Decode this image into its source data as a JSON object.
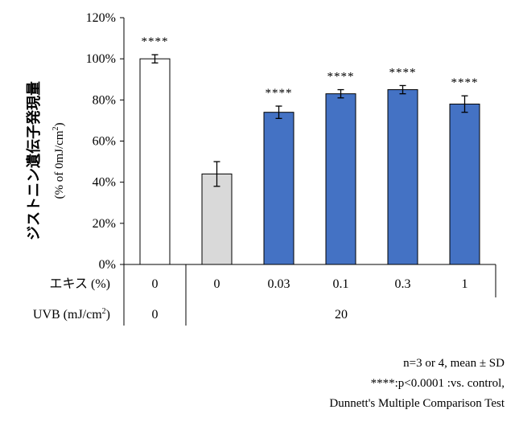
{
  "chart_data": {
    "type": "bar",
    "ylabel_main": "ジストニン遺伝子発現量",
    "ylabel_unit_prefix": "(% of 0mJ/cm",
    "ylabel_unit_sup": "2",
    "ylabel_unit_suffix": ")",
    "ylim": [
      0,
      120
    ],
    "yticks": [
      "0%",
      "20%",
      "40%",
      "60%",
      "80%",
      "100%",
      "120%"
    ],
    "bars": [
      {
        "extract": "0",
        "uvb": "0",
        "value": 100,
        "sd": 2,
        "sig": "****",
        "color": "#ffffff"
      },
      {
        "extract": "0",
        "uvb": "20",
        "value": 44,
        "sd": 6,
        "sig": "",
        "color": "#d9d9d9"
      },
      {
        "extract": "0.03",
        "uvb": "20",
        "value": 74,
        "sd": 3,
        "sig": "****",
        "color": "#4472c4"
      },
      {
        "extract": "0.1",
        "uvb": "20",
        "value": 83,
        "sd": 2,
        "sig": "****",
        "color": "#4472c4"
      },
      {
        "extract": "0.3",
        "uvb": "20",
        "value": 85,
        "sd": 2,
        "sig": "****",
        "color": "#4472c4"
      },
      {
        "extract": "1",
        "uvb": "20",
        "value": 78,
        "sd": 4,
        "sig": "****",
        "color": "#4472c4"
      }
    ],
    "row1_label": "エキス (%)",
    "row2_label_prefix": "UVB (mJ/cm",
    "row2_label_sup": "2",
    "row2_label_suffix": ")",
    "row2_group_value": "20"
  },
  "notes": {
    "line1": "n=3 or 4, mean ± SD",
    "line2": "****:p<0.0001 :vs.  control,",
    "line3": "Dunnett's Multiple Comparison Test"
  }
}
